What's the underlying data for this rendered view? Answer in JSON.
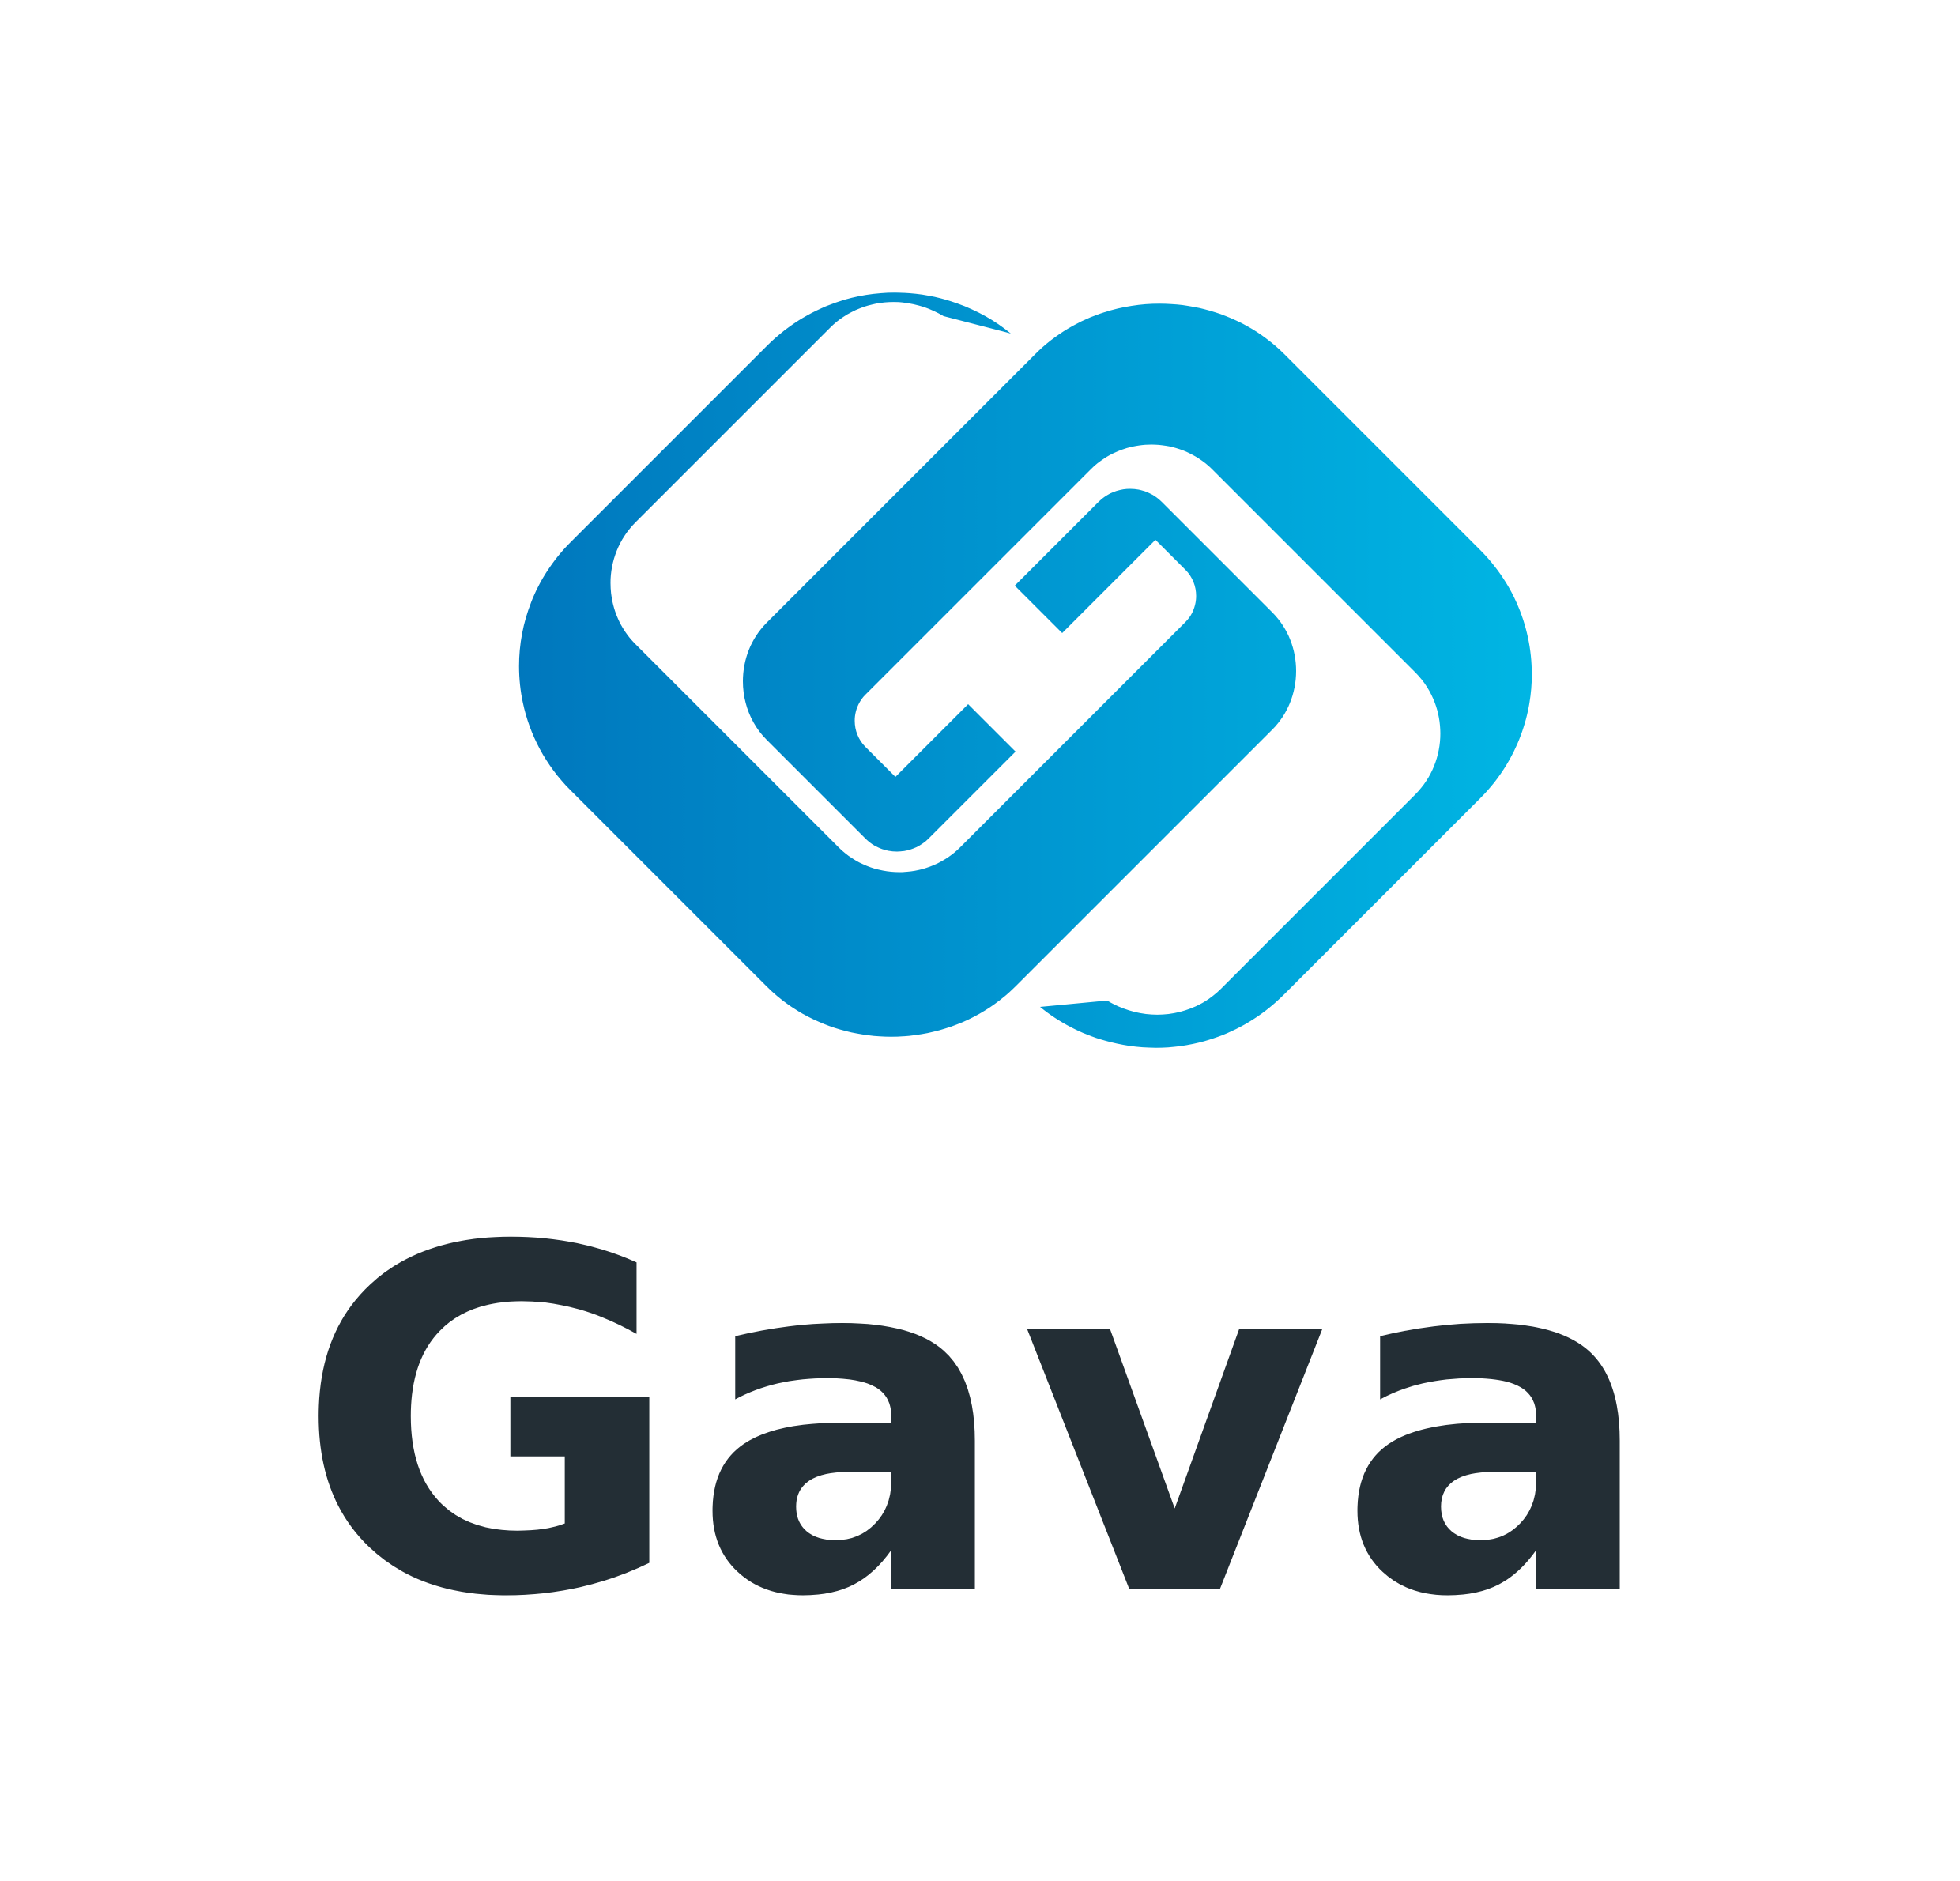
{
  "logo": {
    "wordmark": "Gava",
    "mark_icon": "interlocked-chain-link-icon",
    "colors": {
      "gradient_start": "#0077bd",
      "gradient_end": "#00b6e4",
      "wordmark": "#232e35",
      "background": "#ffffff"
    }
  }
}
